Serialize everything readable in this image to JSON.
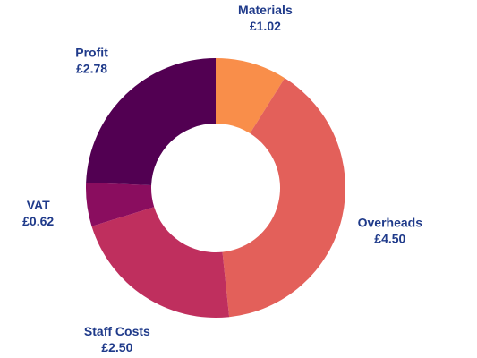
{
  "chart_data": {
    "type": "pie",
    "variant": "donut",
    "start": "12 o'clock, clockwise",
    "label_color": "#1f3a8a",
    "slices": [
      {
        "label": "Materials",
        "value_text": "£1.02",
        "value": 1.02,
        "color": "#f98e4a"
      },
      {
        "label": "Overheads",
        "value_text": "£4.50",
        "value": 4.5,
        "color": "#e3605a"
      },
      {
        "label": "Staff Costs",
        "value_text": "£2.50",
        "value": 2.5,
        "color": "#bf2f5e"
      },
      {
        "label": "VAT",
        "value_text": "£0.62",
        "value": 0.62,
        "color": "#8a0d5f"
      },
      {
        "label": "Profit",
        "value_text": "£2.78",
        "value": 2.78,
        "color": "#520052"
      }
    ]
  }
}
